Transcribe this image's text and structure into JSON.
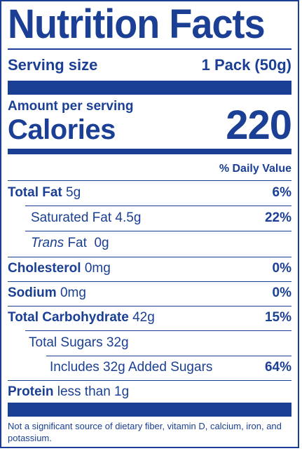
{
  "title": "Nutrition Facts",
  "serving": {
    "label": "Serving size",
    "value": "1 Pack (50g)"
  },
  "amount_per_serving": "Amount per serving",
  "calories": {
    "label": "Calories",
    "value": "220"
  },
  "daily_value_header": "% Daily Value",
  "nutrients": {
    "total_fat": {
      "name": "Total Fat",
      "amount": "5g",
      "dv": "6%"
    },
    "saturated_fat": {
      "name": "Saturated Fat",
      "amount": "4.5g",
      "dv": "22%"
    },
    "trans_fat": {
      "name": "Trans",
      "suffix": "Fat",
      "amount": "0g"
    },
    "cholesterol": {
      "name": "Cholesterol",
      "amount": "0mg",
      "dv": "0%"
    },
    "sodium": {
      "name": "Sodium",
      "amount": "0mg",
      "dv": "0%"
    },
    "total_carb": {
      "name": "Total Carbohydrate",
      "amount": "42g",
      "dv": "15%"
    },
    "total_sugars": {
      "name": "Total Sugars",
      "amount": "32g"
    },
    "added_sugars": {
      "text": "Includes 32g Added Sugars",
      "dv": "64%"
    },
    "protein": {
      "name": "Protein",
      "amount": "less than 1g"
    }
  },
  "footnote": "Not a significant source of dietary fiber, vitamin D, calcium, iron, and potassium.",
  "colors": {
    "ink": "#1a3f94",
    "background": "#ffffff"
  }
}
